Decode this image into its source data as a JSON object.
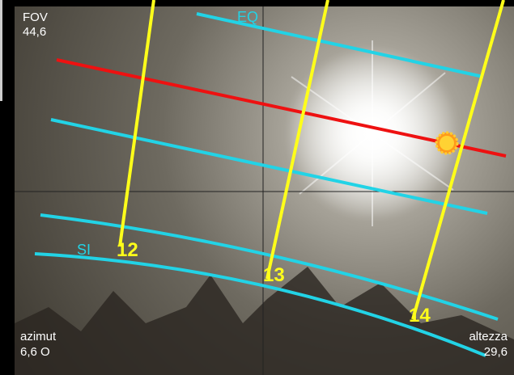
{
  "fov": {
    "label": "FOV",
    "value": "44,6"
  },
  "circles": {
    "equator": "EQ",
    "solstice": "SI"
  },
  "hours": [
    "12",
    "13",
    "14"
  ],
  "azimuth": {
    "label": "azimut",
    "value": "6,6 O"
  },
  "altitude": {
    "label": "altezza",
    "value": "29,6"
  }
}
